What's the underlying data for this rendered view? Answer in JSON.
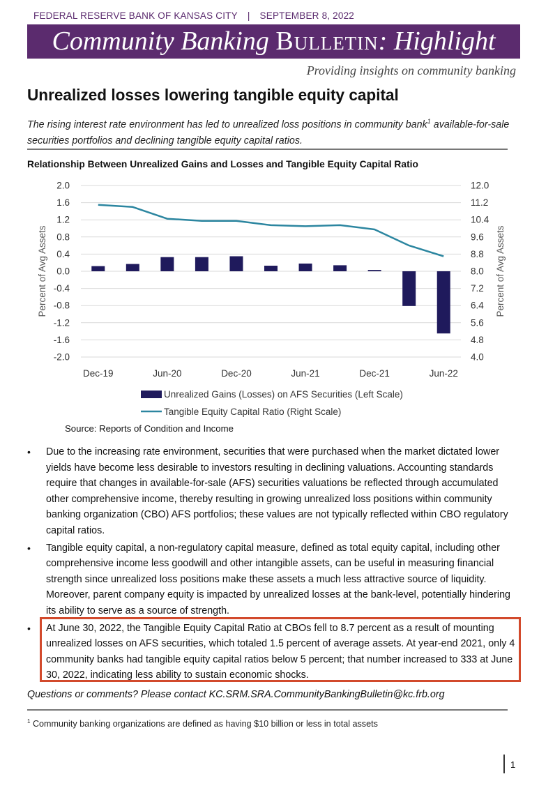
{
  "header": {
    "org": "FEDERAL RESERVE BANK OF KANSAS CITY",
    "separator": "|",
    "date": "SEPTEMBER 8, 2022"
  },
  "banner": {
    "part1": "Community Banking ",
    "part2": "Bulletin",
    "part3": ": Highlight"
  },
  "tagline": "Providing insights on community banking",
  "title": "Unrealized losses lowering tangible equity capital",
  "subtitle": {
    "before": "The rising interest rate environment has led to unrealized loss positions in community bank",
    "sup": "1",
    "after": " available-for-sale securities portfolios and declining tangible equity capital ratios."
  },
  "chart_title": "Relationship Between Unrealized Gains and Losses and Tangible Equity Capital Ratio",
  "chart_data": {
    "type": "bar",
    "categories": [
      "Dec-19",
      "Mar-20",
      "Jun-20",
      "Sep-20",
      "Dec-20",
      "Mar-21",
      "Jun-21",
      "Sep-21",
      "Dec-21",
      "Mar-22",
      "Jun-22"
    ],
    "x_tick_labels": [
      "Dec-19",
      "Jun-20",
      "Dec-20",
      "Jun-21",
      "Dec-21",
      "Jun-22"
    ],
    "series": [
      {
        "name": "Unrealized Gains (Losses) on AFS Securities (Left Scale)",
        "type": "bar",
        "axis": "left",
        "values": [
          0.12,
          0.17,
          0.33,
          0.33,
          0.35,
          0.13,
          0.18,
          0.14,
          0.03,
          -0.81,
          -1.45
        ],
        "color": "#1f1a5c"
      },
      {
        "name": "Tangible Equity Capital Ratio (Right Scale)",
        "type": "line",
        "axis": "right",
        "values": [
          11.1,
          11.0,
          10.45,
          10.35,
          10.35,
          10.15,
          10.1,
          10.15,
          9.95,
          9.2,
          8.7
        ],
        "color": "#2c86a0"
      }
    ],
    "left_axis": {
      "label": "Percent of  Avg Assets",
      "ylim": [
        -2.0,
        2.0
      ],
      "ticks": [
        "2.0",
        "1.6",
        "1.2",
        "0.8",
        "0.4",
        "0.0",
        "-0.4",
        "-0.8",
        "-1.2",
        "-1.6",
        "-2.0"
      ]
    },
    "right_axis": {
      "label": "Percent of Avg Assets",
      "ylim": [
        4.0,
        12.0
      ],
      "ticks": [
        "12.0",
        "11.2",
        "10.4",
        "9.6",
        "8.8",
        "8.0",
        "7.2",
        "6.4",
        "5.6",
        "4.8",
        "4.0"
      ]
    },
    "grid": true,
    "legend_position": "bottom"
  },
  "source": "Source: Reports of Condition and Income",
  "bullets": [
    "Due to the increasing rate environment, securities that were purchased when the market dictated lower yields have become less desirable to investors resulting in declining valuations. Accounting standards require that changes in available-for-sale (AFS) securities valuations be reflected through accumulated other comprehensive income, thereby resulting in growing unrealized loss positions within community banking organization (CBO) AFS portfolios; these values are not typically reflected within CBO regulatory capital ratios.",
    "Tangible equity capital, a non-regulatory capital measure, defined as total equity capital, including other comprehensive income less goodwill and other intangible assets, can be useful in measuring financial strength since unrealized loss positions make these assets a much less attractive source of liquidity. Moreover, parent company equity is impacted by unrealized losses at the bank-level, potentially hindering its ability to serve as a source of strength.",
    "At June 30, 2022, the Tangible Equity Capital Ratio at CBOs fell to 8.7 percent as a result of mounting unrealized losses on AFS securities, which totaled 1.5 percent of average assets. At year-end 2021, only 4 community banks had tangible equity capital ratios below 5 percent; that number increased to 333 at June 30, 2022, indicating less ability to sustain economic shocks."
  ],
  "bullet_symbol": "•",
  "contact": "Questions or comments? Please contact KC.SRM.SRA.CommunityBankingBulletin@kc.frb.org",
  "footnote": {
    "sup": "1",
    "text": " Community banking organizations are defined as having $10 billion or less in total assets"
  },
  "page_number": "1",
  "colors": {
    "brand_purple": "#5b2b6e",
    "highlight_border": "#d24a2c",
    "bar": "#1f1a5c",
    "line": "#2c86a0"
  }
}
